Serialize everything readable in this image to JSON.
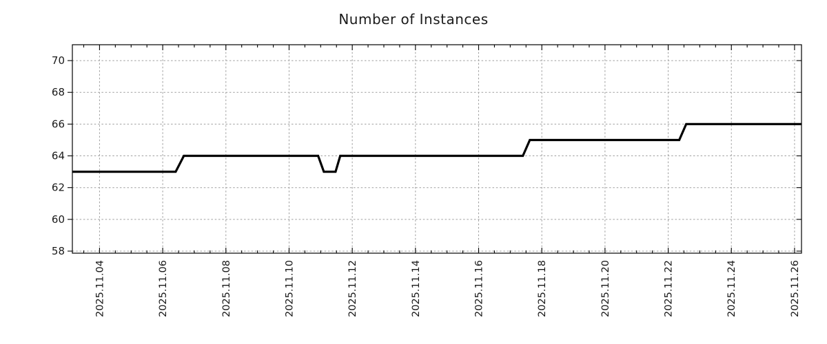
{
  "chart_data": {
    "type": "line",
    "title": "Number of Instances",
    "line_style": "step",
    "grid": "dotted",
    "legend": "none",
    "colors": {
      "line": "#000000",
      "grid": "#9e9e9e",
      "axis": "#000000",
      "text": "#1a1a1a"
    },
    "x_unit": "day of November 2025",
    "xlim": [
      3.14,
      26.22
    ],
    "ylim": [
      57.87,
      71.0
    ],
    "x_ticks": [
      {
        "day": 4,
        "label": "2025.11.04"
      },
      {
        "day": 6,
        "label": "2025.11.06"
      },
      {
        "day": 8,
        "label": "2025.11.08"
      },
      {
        "day": 10,
        "label": "2025.11.10"
      },
      {
        "day": 12,
        "label": "2025.11.12"
      },
      {
        "day": 14,
        "label": "2025.11.14"
      },
      {
        "day": 16,
        "label": "2025.11.16"
      },
      {
        "day": 18,
        "label": "2025.11.18"
      },
      {
        "day": 20,
        "label": "2025.11.20"
      },
      {
        "day": 22,
        "label": "2025.11.22"
      },
      {
        "day": 24,
        "label": "2025.11.24"
      },
      {
        "day": 26,
        "label": "2025.11.26"
      }
    ],
    "x_minor_tick_step": 0.5,
    "y_ticks": [
      {
        "value": 58,
        "label": "58"
      },
      {
        "value": 60,
        "label": "60"
      },
      {
        "value": 62,
        "label": "62"
      },
      {
        "value": 64,
        "label": "64"
      },
      {
        "value": 66,
        "label": "66"
      },
      {
        "value": 68,
        "label": "68"
      },
      {
        "value": 70,
        "label": "70"
      }
    ],
    "series": [
      {
        "name": "instances",
        "color": "#000000",
        "points": [
          [
            3.14,
            63
          ],
          [
            6.41,
            63
          ],
          [
            6.67,
            64
          ],
          [
            10.92,
            64
          ],
          [
            11.1,
            63
          ],
          [
            11.47,
            63
          ],
          [
            11.62,
            64
          ],
          [
            17.4,
            64
          ],
          [
            17.62,
            65
          ],
          [
            22.35,
            65
          ],
          [
            22.57,
            66
          ],
          [
            26.22,
            66
          ]
        ]
      }
    ]
  }
}
